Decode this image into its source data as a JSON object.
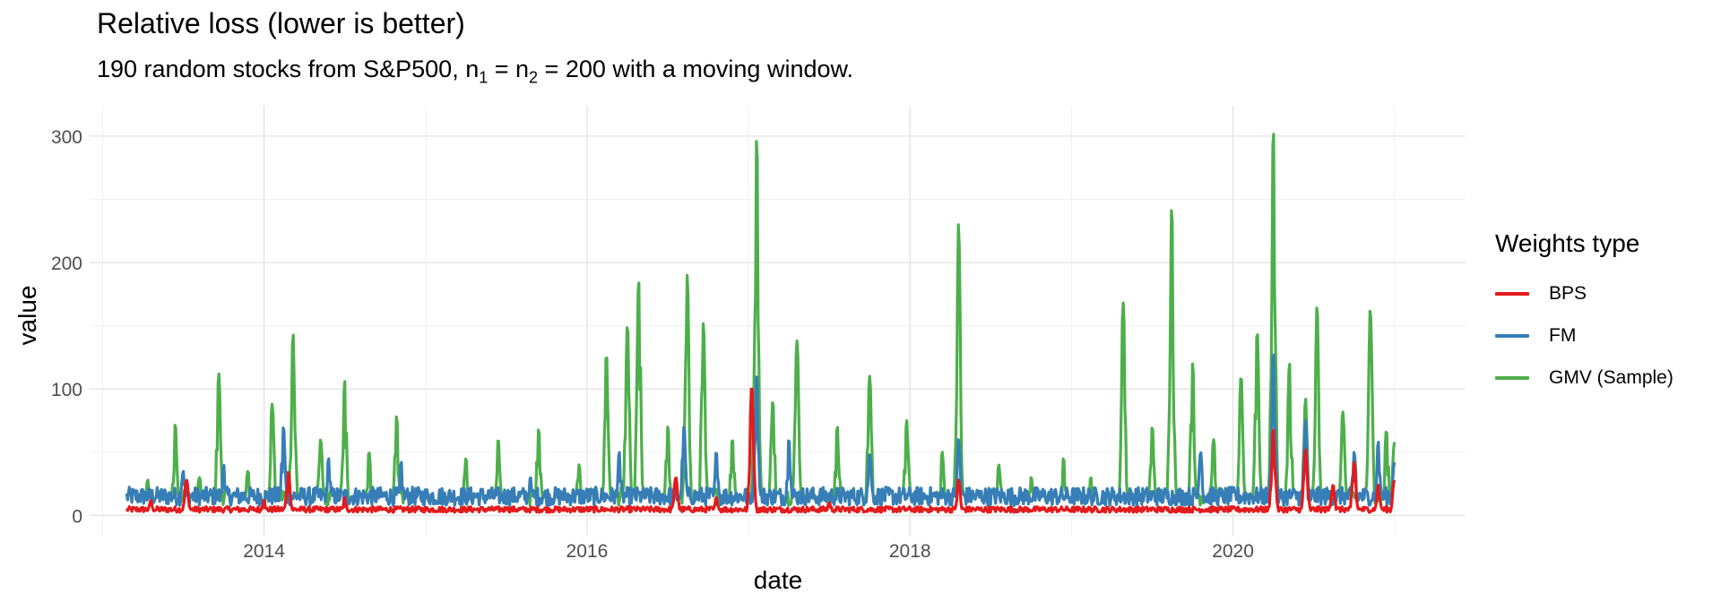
{
  "chart_data": {
    "type": "line",
    "title": "Relative loss (lower is better)",
    "subtitle": {
      "text_a": "190 random stocks from S&P500,  n",
      "sub1": "1",
      "text_b": " = n",
      "sub2": "2",
      "text_c": " = 200 with a moving window."
    },
    "xlabel": "date",
    "ylabel": "value",
    "xlim": [
      2012.92,
      2021.44
    ],
    "ylim": [
      -16,
      324
    ],
    "x_ticks": [
      2014,
      2016,
      2018,
      2020
    ],
    "x_tick_labels": [
      "2014",
      "2016",
      "2018",
      "2020"
    ],
    "y_ticks": [
      0,
      100,
      200,
      300
    ],
    "y_tick_labels": [
      "0",
      "100",
      "200",
      "300"
    ],
    "x_range": [
      2013.15,
      2021.0
    ],
    "legend": {
      "title": "Weights type",
      "position": "right",
      "entries": [
        "BPS",
        "FM",
        "GMV (Sample)"
      ]
    },
    "series": [
      {
        "name": "BPS",
        "color": "#E41A1C",
        "baseline": 5,
        "peaks": [
          [
            2013.3,
            12
          ],
          [
            2013.52,
            28
          ],
          [
            2014.0,
            12
          ],
          [
            2014.15,
            34
          ],
          [
            2014.5,
            14
          ],
          [
            2015.5,
            6
          ],
          [
            2016.55,
            30
          ],
          [
            2016.8,
            14
          ],
          [
            2017.02,
            102
          ],
          [
            2017.5,
            10
          ],
          [
            2018.3,
            28
          ],
          [
            2020.25,
            68
          ],
          [
            2020.45,
            52
          ],
          [
            2020.62,
            24
          ],
          [
            2020.75,
            42
          ],
          [
            2020.9,
            24
          ],
          [
            2021.0,
            28
          ]
        ]
      },
      {
        "name": "FM",
        "color": "#377EB8",
        "baseline": 16,
        "peaks": [
          [
            2013.5,
            35
          ],
          [
            2013.75,
            40
          ],
          [
            2014.12,
            70
          ],
          [
            2014.4,
            45
          ],
          [
            2014.85,
            42
          ],
          [
            2015.65,
            30
          ],
          [
            2016.2,
            50
          ],
          [
            2016.6,
            70
          ],
          [
            2016.8,
            50
          ],
          [
            2017.05,
            110
          ],
          [
            2017.25,
            60
          ],
          [
            2017.75,
            48
          ],
          [
            2018.3,
            60
          ],
          [
            2019.8,
            50
          ],
          [
            2020.25,
            128
          ],
          [
            2020.45,
            75
          ],
          [
            2020.75,
            50
          ],
          [
            2020.9,
            58
          ],
          [
            2021.0,
            42
          ]
        ]
      },
      {
        "name": "GMV (Sample)",
        "color": "#4DAF4A",
        "baseline": 16,
        "peaks": [
          [
            2013.28,
            28
          ],
          [
            2013.45,
            72
          ],
          [
            2013.6,
            30
          ],
          [
            2013.72,
            112
          ],
          [
            2013.9,
            35
          ],
          [
            2014.05,
            88
          ],
          [
            2014.18,
            143
          ],
          [
            2014.35,
            60
          ],
          [
            2014.5,
            106
          ],
          [
            2014.65,
            50
          ],
          [
            2014.82,
            78
          ],
          [
            2015.25,
            45
          ],
          [
            2015.45,
            60
          ],
          [
            2015.7,
            68
          ],
          [
            2015.95,
            40
          ],
          [
            2016.12,
            127
          ],
          [
            2016.25,
            150
          ],
          [
            2016.32,
            185
          ],
          [
            2016.5,
            70
          ],
          [
            2016.62,
            190
          ],
          [
            2016.72,
            152
          ],
          [
            2016.9,
            60
          ],
          [
            2017.05,
            297
          ],
          [
            2017.15,
            90
          ],
          [
            2017.3,
            138
          ],
          [
            2017.55,
            70
          ],
          [
            2017.75,
            110
          ],
          [
            2017.98,
            75
          ],
          [
            2018.2,
            50
          ],
          [
            2018.3,
            230
          ],
          [
            2018.55,
            40
          ],
          [
            2018.75,
            30
          ],
          [
            2018.95,
            45
          ],
          [
            2019.12,
            30
          ],
          [
            2019.32,
            168
          ],
          [
            2019.5,
            70
          ],
          [
            2019.62,
            243
          ],
          [
            2019.75,
            120
          ],
          [
            2019.88,
            60
          ],
          [
            2020.05,
            110
          ],
          [
            2020.15,
            145
          ],
          [
            2020.25,
            304
          ],
          [
            2020.35,
            120
          ],
          [
            2020.45,
            92
          ],
          [
            2020.52,
            165
          ],
          [
            2020.68,
            82
          ],
          [
            2020.85,
            163
          ],
          [
            2020.95,
            67
          ],
          [
            2021.0,
            58
          ]
        ]
      }
    ]
  }
}
